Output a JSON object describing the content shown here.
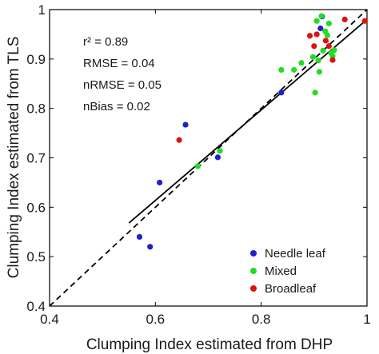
{
  "chart_data": {
    "type": "scatter",
    "xlabel": "Clumping Index estimated from DHP",
    "ylabel": "Clumping Index estimated from TLS",
    "xlim": [
      0.4,
      1.0
    ],
    "ylim": [
      0.4,
      1.0
    ],
    "xticks": [
      "0.4",
      "0.6",
      "0.8",
      "1"
    ],
    "yticks": [
      "0.4",
      "0.5",
      "0.6",
      "0.7",
      "0.8",
      "0.9",
      "1"
    ],
    "grid": false,
    "legend_position": "bottom-right",
    "stats": [
      "r² = 0.89",
      "RMSE = 0.04",
      "nRMSE = 0.05",
      "nBias = 0.02"
    ],
    "series": [
      {
        "name": "Needle leaf",
        "color": "#1f1fcc",
        "points": [
          [
            0.57,
            0.54
          ],
          [
            0.59,
            0.52
          ],
          [
            0.608,
            0.65
          ],
          [
            0.657,
            0.767
          ],
          [
            0.718,
            0.701
          ],
          [
            0.838,
            0.832
          ],
          [
            0.912,
            0.962
          ],
          [
            0.915,
            0.986
          ]
        ]
      },
      {
        "name": "Mixed",
        "color": "#22dd22",
        "points": [
          [
            0.68,
            0.683
          ],
          [
            0.722,
            0.714
          ],
          [
            0.838,
            0.878
          ],
          [
            0.862,
            0.878
          ],
          [
            0.876,
            0.892
          ],
          [
            0.898,
            0.904
          ],
          [
            0.902,
            0.832
          ],
          [
            0.905,
            0.977
          ],
          [
            0.908,
            0.897
          ],
          [
            0.91,
            0.874
          ],
          [
            0.914,
            0.987
          ],
          [
            0.917,
            0.917
          ],
          [
            0.921,
            0.956
          ],
          [
            0.925,
            0.948
          ],
          [
            0.928,
            0.972
          ],
          [
            0.932,
            0.912
          ],
          [
            0.935,
            0.906
          ],
          [
            0.938,
            0.918
          ]
        ]
      },
      {
        "name": "Broadleaf",
        "color": "#dd1111",
        "points": [
          [
            0.645,
            0.736
          ],
          [
            0.892,
            0.947
          ],
          [
            0.9,
            0.926
          ],
          [
            0.905,
            0.95
          ],
          [
            0.922,
            0.937
          ],
          [
            0.928,
            0.926
          ],
          [
            0.935,
            0.898
          ],
          [
            0.958,
            0.98
          ],
          [
            0.996,
            0.977
          ]
        ]
      }
    ],
    "lines": [
      {
        "name": "regression",
        "style": "solid",
        "color": "#000000",
        "x": [
          0.55,
          1.0
        ],
        "y": [
          0.568,
          0.98
        ]
      },
      {
        "name": "1:1",
        "style": "dashed",
        "color": "#000000",
        "x": [
          0.4,
          1.0
        ],
        "y": [
          0.4,
          1.0
        ]
      }
    ]
  }
}
